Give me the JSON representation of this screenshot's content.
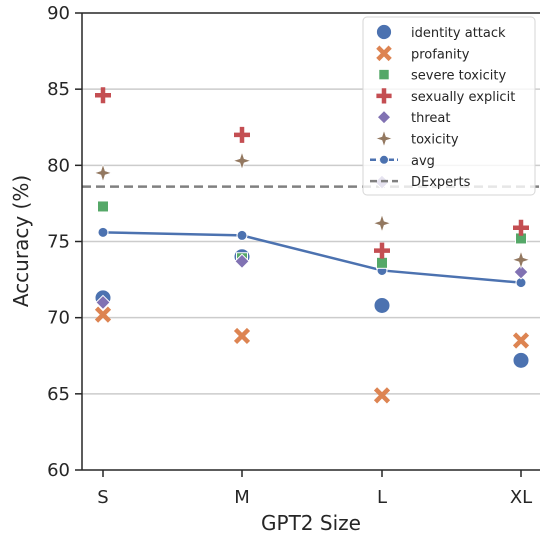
{
  "chart_data": {
    "type": "scatter",
    "title": "",
    "xlabel": "GPT2 Size",
    "ylabel": "Accuracy (%)",
    "categories": [
      "S",
      "M",
      "L",
      "XL"
    ],
    "ylim": [
      60,
      90
    ],
    "yticks": [
      60,
      65,
      70,
      75,
      80,
      85,
      90
    ],
    "grid": "horizontal",
    "legend_position": "top-right",
    "series": [
      {
        "name": "identity attack",
        "marker": "circle",
        "color": "#4c72b0",
        "values": [
          71.3,
          74.0,
          70.8,
          67.2
        ]
      },
      {
        "name": "profanity",
        "marker": "x",
        "color": "#dd8452",
        "values": [
          70.2,
          68.8,
          64.9,
          68.5
        ]
      },
      {
        "name": "severe toxicity",
        "marker": "square",
        "color": "#55a868",
        "values": [
          77.3,
          73.9,
          73.6,
          75.2
        ]
      },
      {
        "name": "sexually explicit",
        "marker": "plus",
        "color": "#c44e52",
        "values": [
          84.6,
          82.0,
          74.4,
          75.9
        ]
      },
      {
        "name": "threat",
        "marker": "diamond",
        "color": "#8172b3",
        "values": [
          71.0,
          73.7,
          78.9,
          73.0
        ]
      },
      {
        "name": "toxicity",
        "marker": "star",
        "color": "#937860",
        "values": [
          79.5,
          80.3,
          76.2,
          73.8
        ]
      },
      {
        "name": "avg",
        "marker": "line",
        "color": "#4c72b0",
        "values": [
          75.6,
          75.4,
          73.1,
          72.3
        ]
      }
    ],
    "reference_line": {
      "name": "DExperts",
      "value": 78.6,
      "color": "#808080",
      "style": "dashed"
    }
  }
}
